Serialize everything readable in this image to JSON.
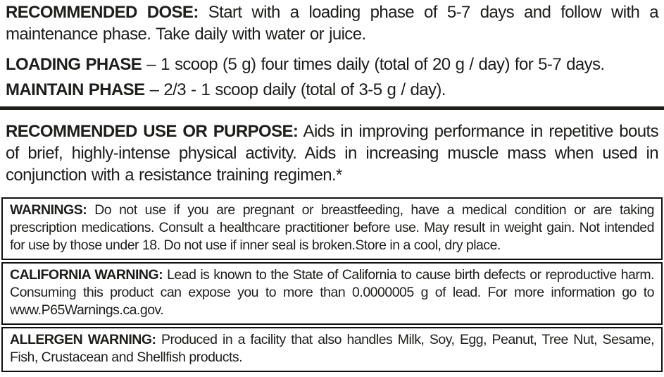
{
  "colors": {
    "background": "#ffffff",
    "text": "#1d1d1b",
    "box_border": "#111111",
    "divider": "#1d1d1b"
  },
  "dose_section": {
    "recommended_dose": {
      "label": "RECOMMENDED DOSE:",
      "text": "Start with a loading phase of 5-7 days and follow with a maintenance phase. Take daily with water or juice."
    },
    "loading_phase": {
      "label": "LOADING PHASE",
      "separator": "–",
      "text": "1 scoop (5 g) four times daily (total of 20 g / day) for 5-7 days."
    },
    "maintain_phase": {
      "label": "MAINTAIN PHASE",
      "separator": "–",
      "text": "2/3 - 1 scoop daily (total of 3-5 g / day)."
    }
  },
  "use_section": {
    "label": "RECOMMENDED USE OR PURPOSE:",
    "text": "Aids in improving performance in repetitive bouts of brief, highly-intense physical activity. Aids in increasing muscle mass when used in conjunction with a resistance training regimen.*"
  },
  "warning_boxes": [
    {
      "label": "WARNINGS:",
      "text": "Do not use if you are pregnant or breastfeeding, have a medical condition or are taking prescription medications. Consult a healthcare practitioner before use. May result in weight gain. Not intended for use by those under 18. Do not use if inner seal is broken.Store in a cool, dry place."
    },
    {
      "label": "CALIFORNIA WARNING:",
      "text": "Lead is known to the State of California to cause birth defects or reproductive harm. Consuming this product can expose you to more than 0.0000005 g of lead. For more information go to www.P65Warnings.ca.gov."
    },
    {
      "label": "ALLERGEN WARNING:",
      "text": "Produced in a facility that also handles Milk, Soy, Egg, Peanut, Tree Nut, Sesame, Fish, Crustacean and Shellfish products."
    }
  ]
}
